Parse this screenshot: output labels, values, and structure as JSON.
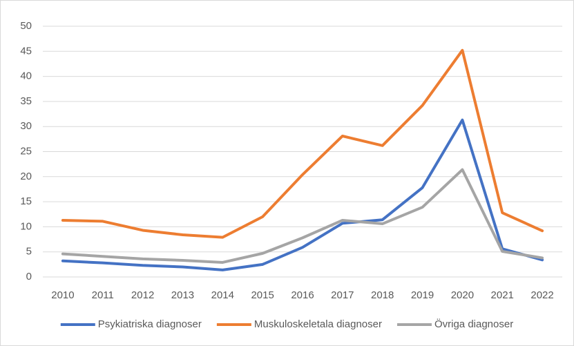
{
  "chart_data": {
    "type": "line",
    "categories": [
      "2010",
      "2011",
      "2012",
      "2013",
      "2014",
      "2015",
      "2016",
      "2017",
      "2018",
      "2019",
      "2020",
      "2021",
      "2022"
    ],
    "series": [
      {
        "name": "Psykiatriska diagnoser",
        "color": "#4472c4",
        "values": [
          3.2,
          2.8,
          2.3,
          2.0,
          1.4,
          2.5,
          5.9,
          10.7,
          11.4,
          17.8,
          31.3,
          5.6,
          3.4
        ]
      },
      {
        "name": "Muskuloskeletala diagnoser",
        "color": "#ed7d31",
        "values": [
          11.3,
          11.1,
          9.3,
          8.4,
          7.9,
          12.0,
          20.4,
          28.1,
          26.2,
          34.2,
          45.2,
          12.8,
          9.2
        ]
      },
      {
        "name": "Övriga diagnoser",
        "color": "#a5a5a5",
        "values": [
          4.6,
          4.1,
          3.6,
          3.3,
          2.9,
          4.7,
          7.8,
          11.3,
          10.6,
          13.9,
          21.4,
          5.1,
          3.8
        ]
      }
    ],
    "ylim": [
      0,
      50
    ],
    "yticks": [
      0,
      5,
      10,
      15,
      20,
      25,
      30,
      35,
      40,
      45,
      50
    ],
    "grid": true,
    "legend": "bottom"
  }
}
